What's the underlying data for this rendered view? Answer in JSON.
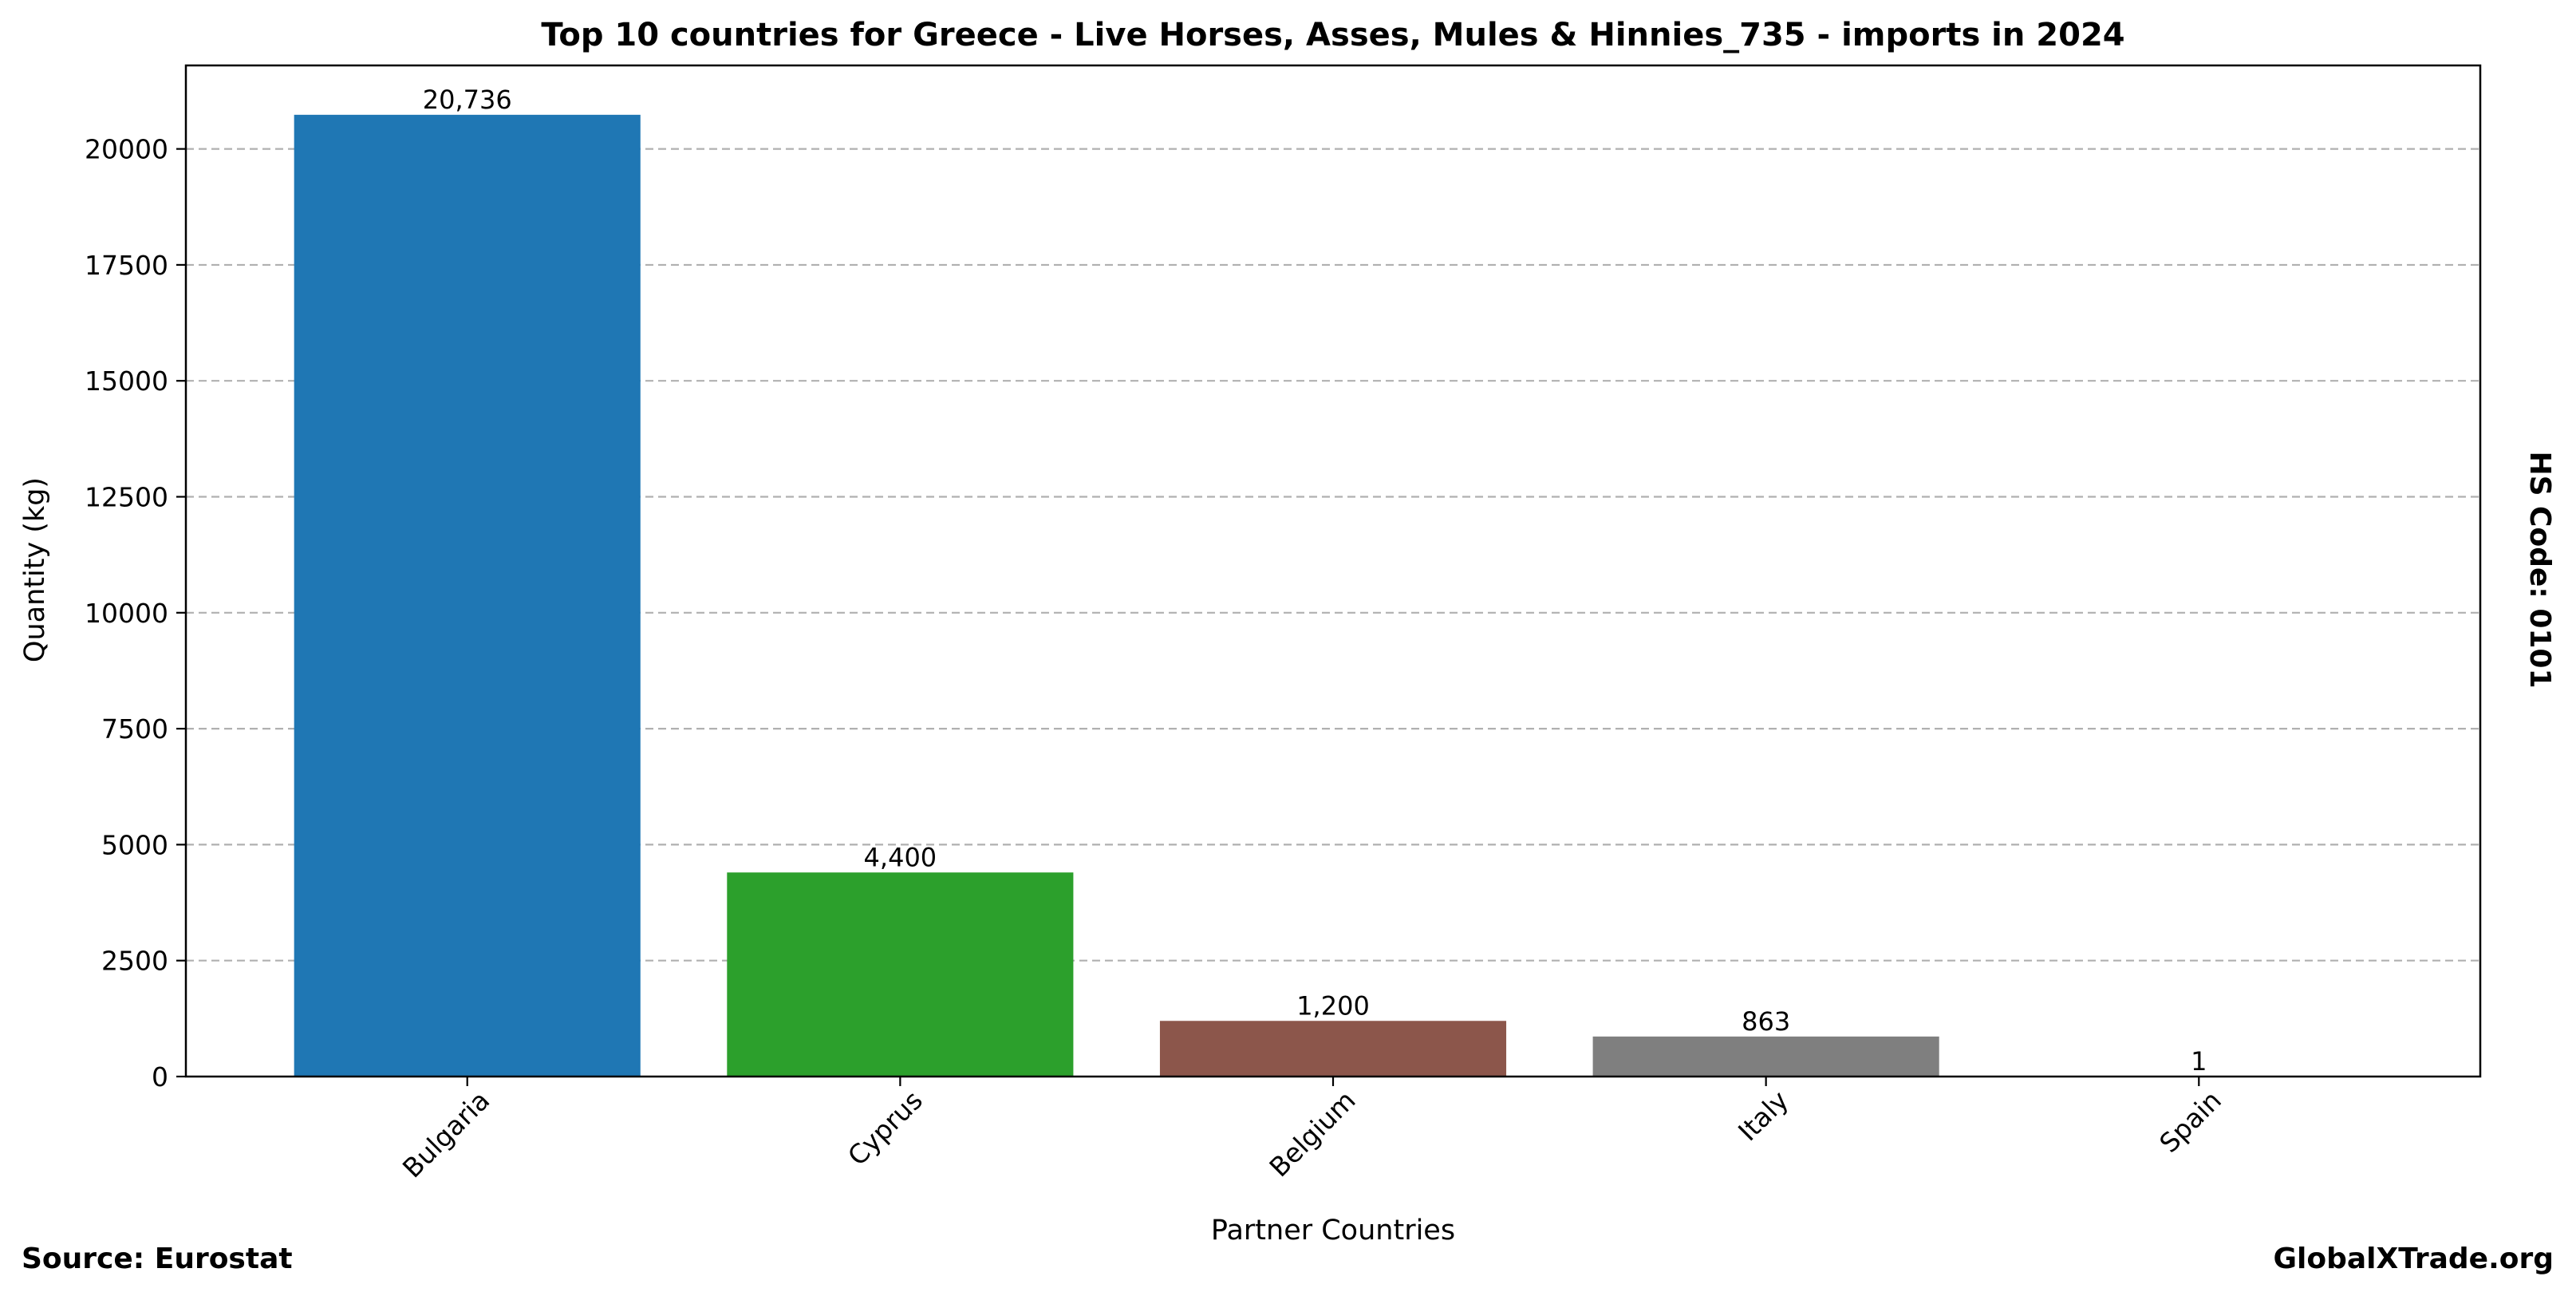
{
  "chart_data": {
    "type": "bar",
    "title": "Top 10 countries for Greece - Live Horses, Asses, Mules & Hinnies_735 - imports in 2024",
    "xlabel": "Partner Countries",
    "ylabel": "Quantity (kg)",
    "categories": [
      "Bulgaria",
      "Cyprus",
      "Belgium",
      "Italy",
      "Spain"
    ],
    "values": [
      20736,
      4400,
      1200,
      863,
      1
    ],
    "value_labels": [
      "20,736",
      "4,400",
      "1,200",
      "863",
      "1"
    ],
    "colors": [
      "#1f77b4",
      "#2ca02c",
      "#8c564b",
      "#7f7f7f",
      "#17becf"
    ],
    "ylim": [
      0,
      21800
    ],
    "yticks": [
      0,
      2500,
      5000,
      7500,
      10000,
      12500,
      15000,
      17500,
      20000
    ],
    "grid": "y-dashed",
    "legend": "none"
  },
  "side_label": "HS Code: 0101",
  "footer": {
    "source": "Source: Eurostat",
    "brand": "GlobalXTrade.org"
  }
}
